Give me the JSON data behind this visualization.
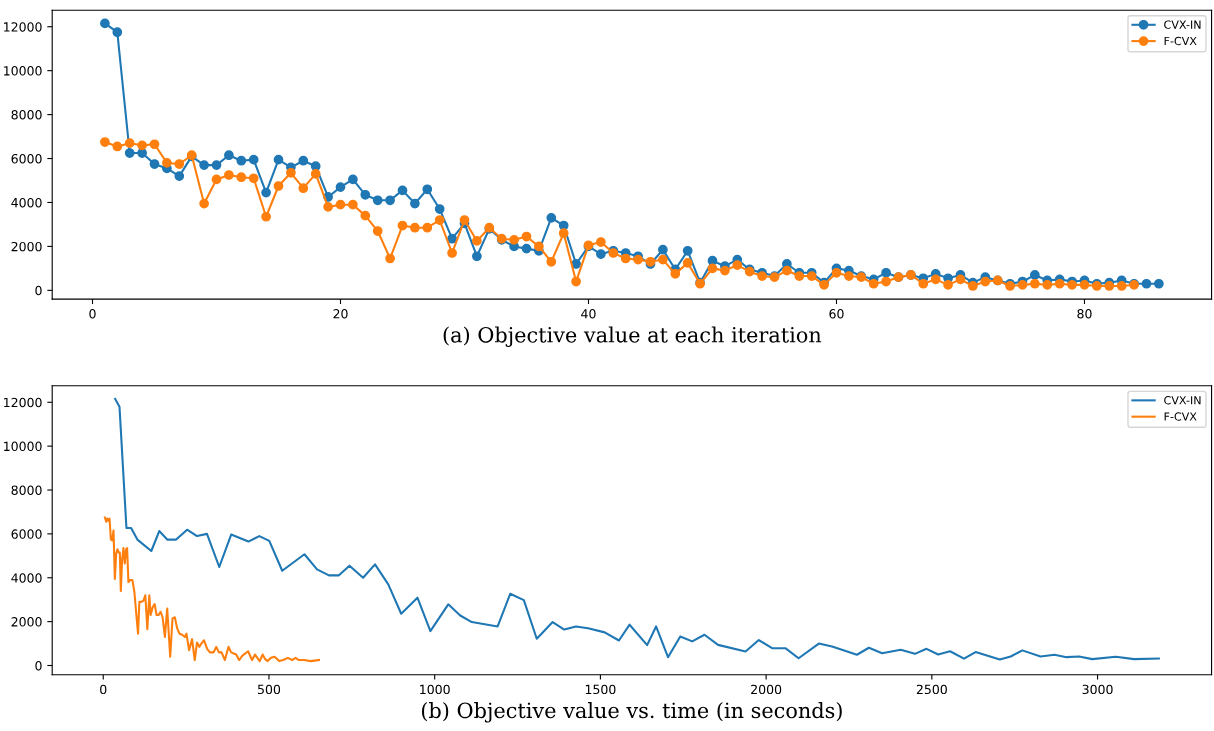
{
  "chart_data": [
    {
      "type": "line",
      "xlabel": "(a) Objective value at each iteration",
      "marker": "circle",
      "legend": "top right",
      "grid": false,
      "xlim": [
        -3.25,
        90.25
      ],
      "ylim": [
        -400,
        12750
      ],
      "xticks": [
        0,
        20,
        40,
        60,
        80
      ],
      "yticks": [
        0,
        2000,
        4000,
        6000,
        8000,
        10000,
        12000
      ],
      "series": [
        {
          "name": "CVX-IN",
          "color": "#1f77b4",
          "x": [
            1,
            2,
            3,
            4,
            5,
            6,
            7,
            8,
            9,
            10,
            11,
            12,
            13,
            14,
            15,
            16,
            17,
            18,
            19,
            20,
            21,
            22,
            23,
            24,
            25,
            26,
            27,
            28,
            29,
            30,
            31,
            32,
            33,
            34,
            35,
            36,
            37,
            38,
            39,
            40,
            41,
            42,
            43,
            44,
            45,
            46,
            47,
            48,
            49,
            50,
            51,
            52,
            53,
            54,
            55,
            56,
            57,
            58,
            59,
            60,
            61,
            62,
            63,
            64,
            65,
            66,
            67,
            68,
            69,
            70,
            71,
            72,
            73,
            74,
            75,
            76,
            77,
            78,
            79,
            80,
            81,
            82,
            83,
            84,
            85,
            86
          ],
          "values": [
            12150,
            11750,
            6250,
            6250,
            5750,
            5550,
            5200,
            6100,
            5700,
            5700,
            6150,
            5900,
            5950,
            4450,
            5950,
            5600,
            5900,
            5650,
            4250,
            4700,
            5050,
            4350,
            4100,
            4100,
            4550,
            3950,
            4600,
            3700,
            2350,
            3050,
            1550,
            2800,
            2300,
            2000,
            1900,
            1800,
            3300,
            2950,
            1200,
            2000,
            1650,
            1800,
            1700,
            1550,
            1200,
            1850,
            950,
            1800,
            350,
            1350,
            1100,
            1400,
            950,
            800,
            650,
            1200,
            800,
            800,
            350,
            1000,
            900,
            650,
            500,
            800,
            600,
            700,
            550,
            750,
            550,
            700,
            350,
            600,
            450,
            300,
            400,
            700,
            450,
            500,
            400,
            450,
            300,
            350,
            450,
            300,
            300,
            300
          ]
        },
        {
          "name": "F-CVX",
          "color": "#ff7f0e",
          "x": [
            1,
            2,
            3,
            4,
            5,
            6,
            7,
            8,
            9,
            10,
            11,
            12,
            13,
            14,
            15,
            16,
            17,
            18,
            19,
            20,
            21,
            22,
            23,
            24,
            25,
            26,
            27,
            28,
            29,
            30,
            31,
            32,
            33,
            34,
            35,
            36,
            37,
            38,
            39,
            40,
            41,
            42,
            43,
            44,
            45,
            46,
            47,
            48,
            49,
            50,
            51,
            52,
            53,
            54,
            55,
            56,
            57,
            58,
            59,
            60,
            61,
            62,
            63,
            64,
            65,
            66,
            67,
            68,
            69,
            70,
            71,
            72,
            73,
            74,
            75,
            76,
            77,
            78,
            79,
            80,
            81,
            82,
            83,
            84
          ],
          "values": [
            6750,
            6550,
            6700,
            6600,
            6650,
            5800,
            5750,
            6150,
            3950,
            5050,
            5250,
            5150,
            5100,
            3350,
            4750,
            5350,
            4650,
            5300,
            3800,
            3900,
            3900,
            3400,
            2700,
            1450,
            2950,
            2850,
            2850,
            3200,
            1700,
            3200,
            2250,
            2850,
            2350,
            2300,
            2450,
            2000,
            1300,
            2600,
            400,
            2050,
            2200,
            1700,
            1450,
            1400,
            1300,
            1400,
            750,
            1250,
            300,
            1000,
            900,
            1150,
            850,
            650,
            600,
            900,
            650,
            650,
            250,
            800,
            650,
            600,
            300,
            400,
            600,
            700,
            300,
            500,
            250,
            500,
            200,
            400,
            450,
            200,
            250,
            300,
            250,
            300,
            250,
            250,
            200,
            200,
            200,
            250
          ]
        }
      ]
    },
    {
      "type": "line",
      "xlabel": "(b) Objective value vs. time (in seconds)",
      "legend": "top right",
      "grid": false,
      "xlim": [
        -154,
        3344
      ],
      "ylim": [
        -420,
        12750
      ],
      "xticks": [
        0,
        500,
        1000,
        1500,
        2000,
        2500,
        3000
      ],
      "yticks": [
        0,
        2000,
        4000,
        6000,
        8000,
        10000,
        12000
      ],
      "series": [
        {
          "name": "CVX-IN",
          "color": "#1f77b4",
          "x": [
            36,
            49,
            70,
            84,
            103,
            145,
            169,
            193,
            220,
            253,
            283,
            313,
            350,
            386,
            438,
            471,
            501,
            540,
            607,
            645,
            681,
            711,
            743,
            784,
            820,
            860,
            899,
            948,
            987,
            1041,
            1077,
            1112,
            1190,
            1228,
            1269,
            1308,
            1356,
            1391,
            1426,
            1463,
            1513,
            1556,
            1588,
            1641,
            1668,
            1704,
            1741,
            1777,
            1814,
            1855,
            1938,
            1978,
            2018,
            2058,
            2098,
            2159,
            2199,
            2274,
            2310,
            2350,
            2406,
            2449,
            2484,
            2519,
            2555,
            2597,
            2632,
            2705,
            2738,
            2773,
            2828,
            2870,
            2906,
            2944,
            2984,
            3055,
            3110,
            3185
          ],
          "values": [
            12150,
            11800,
            6270,
            6270,
            5740,
            5220,
            6130,
            5740,
            5740,
            6190,
            5900,
            6000,
            4490,
            5970,
            5650,
            5900,
            5680,
            4320,
            5070,
            4380,
            4110,
            4110,
            4550,
            4000,
            4610,
            3700,
            2360,
            3090,
            1570,
            2790,
            2280,
            1980,
            1780,
            3270,
            2980,
            1220,
            1980,
            1640,
            1780,
            1700,
            1510,
            1140,
            1860,
            930,
            1780,
            380,
            1320,
            1100,
            1400,
            940,
            640,
            1160,
            790,
            790,
            330,
            1000,
            870,
            490,
            810,
            560,
            720,
            530,
            760,
            500,
            650,
            310,
            610,
            270,
            410,
            690,
            410,
            490,
            380,
            410,
            290,
            400,
            290,
            320
          ]
        },
        {
          "name": "F-CVX",
          "color": "#ff7f0e",
          "x": [
            5,
            9,
            12,
            15,
            19,
            23,
            27,
            31,
            35,
            39,
            43,
            47,
            50,
            53,
            57,
            61,
            65,
            69,
            72,
            76,
            82,
            88,
            94,
            100,
            105,
            109,
            115,
            121,
            127,
            133,
            139,
            143,
            149,
            155,
            161,
            167,
            173,
            179,
            186,
            193,
            202,
            209,
            216,
            223,
            230,
            238,
            246,
            251,
            259,
            268,
            276,
            283,
            290,
            296,
            304,
            314,
            322,
            333,
            341,
            349,
            357,
            367,
            378,
            386,
            394,
            401,
            410,
            420,
            437,
            449,
            458,
            465,
            472,
            481,
            488,
            496,
            506,
            517,
            531,
            543,
            557,
            570,
            580,
            590,
            606,
            626,
            651
          ],
          "values": [
            6750,
            6550,
            6700,
            6600,
            6700,
            5750,
            5700,
            6150,
            3950,
            5100,
            5300,
            5150,
            5150,
            3400,
            4850,
            5350,
            4650,
            5300,
            5350,
            3800,
            3900,
            3900,
            3350,
            2300,
            1450,
            2900,
            2900,
            2950,
            3200,
            1650,
            3200,
            2300,
            2650,
            2800,
            2300,
            2300,
            2450,
            2200,
            1300,
            2600,
            400,
            2150,
            2200,
            1700,
            1450,
            1400,
            1300,
            1450,
            700,
            1200,
            250,
            1050,
            850,
            1000,
            1150,
            750,
            600,
            600,
            850,
            600,
            600,
            250,
            850,
            600,
            550,
            500,
            250,
            450,
            650,
            250,
            500,
            350,
            200,
            500,
            300,
            200,
            350,
            400,
            200,
            250,
            350,
            250,
            350,
            250,
            250,
            200,
            250
          ]
        }
      ]
    }
  ]
}
